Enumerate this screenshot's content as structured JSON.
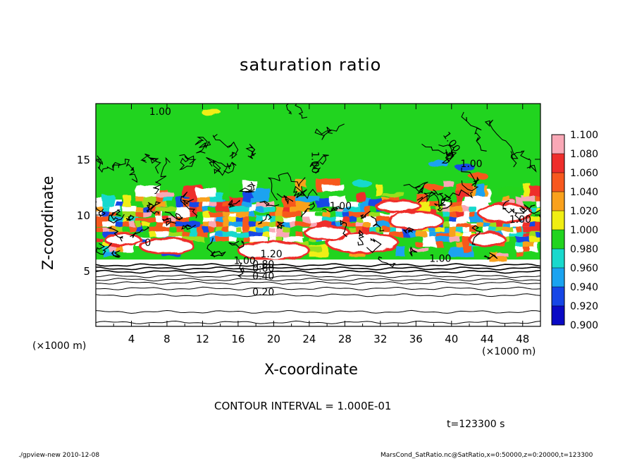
{
  "title": "saturation ratio",
  "footer": {
    "left": "./gpview-new   2010-12-08",
    "right": "MarsCond_SatRatio.nc@SatRatio,x=0:50000,z=0:20000,t=123300"
  },
  "annotations": {
    "contour_interval": "CONTOUR INTERVAL = 1.000E-01",
    "time": "t=123300 s"
  },
  "chart_data": {
    "type": "heatmap",
    "title": "saturation ratio",
    "xlabel": "X-coordinate",
    "ylabel": "Z-coordinate",
    "x_unit": "(×1000 m)",
    "z_unit": "(×1000 m)",
    "xlim": [
      0,
      50
    ],
    "ylim": [
      0,
      20
    ],
    "x_ticks": [
      4,
      8,
      12,
      16,
      20,
      24,
      28,
      32,
      36,
      40,
      44,
      48
    ],
    "y_ticks": [
      5,
      10,
      15
    ],
    "colorbar": {
      "levels": [
        "1.100",
        "1.080",
        "1.060",
        "1.040",
        "1.020",
        "1.000",
        "0.980",
        "0.960",
        "0.940",
        "0.920",
        "0.900"
      ],
      "colors": [
        "#f9a8b6",
        "#ee2e2b",
        "#f7581e",
        "#f9a11c",
        "#f0ee13",
        "#9bdf1a",
        "#21d41f",
        "#18d9cd",
        "#1aa3f0",
        "#1646e6",
        "#0a0ac5",
        "#6a1ab0"
      ]
    },
    "contour_labels": [
      {
        "text": "1.00",
        "x": 6.0,
        "z": 19.0
      },
      {
        "text": "1.00",
        "x": 24.3,
        "z": 15.7,
        "angle": 90
      },
      {
        "text": "1.00",
        "x": 39.0,
        "z": 17.2,
        "angle": 55
      },
      {
        "text": "1.00",
        "x": 41.0,
        "z": 14.3
      },
      {
        "text": "1.00",
        "x": 26.3,
        "z": 10.5
      },
      {
        "text": "1.00",
        "x": 46.5,
        "z": 9.3
      },
      {
        "text": "1.00",
        "x": 37.5,
        "z": 5.8
      },
      {
        "text": "1.00",
        "x": 15.5,
        "z": 5.6
      },
      {
        "text": "1.20",
        "x": 18.5,
        "z": 6.2
      },
      {
        "text": "0.80",
        "x": 17.6,
        "z": 5.3
      },
      {
        "text": "0.60",
        "x": 17.6,
        "z": 4.9
      },
      {
        "text": "0.40",
        "x": 17.6,
        "z": 4.2
      },
      {
        "text": "0.20",
        "x": 17.6,
        "z": 2.8
      },
      {
        "text": "0",
        "x": 5.5,
        "z": 7.2
      }
    ],
    "subsaturated_contours_z": [
      0.35,
      1.3,
      2.8,
      3.4,
      3.9,
      4.2,
      4.5,
      4.9,
      5.2,
      5.5
    ]
  }
}
